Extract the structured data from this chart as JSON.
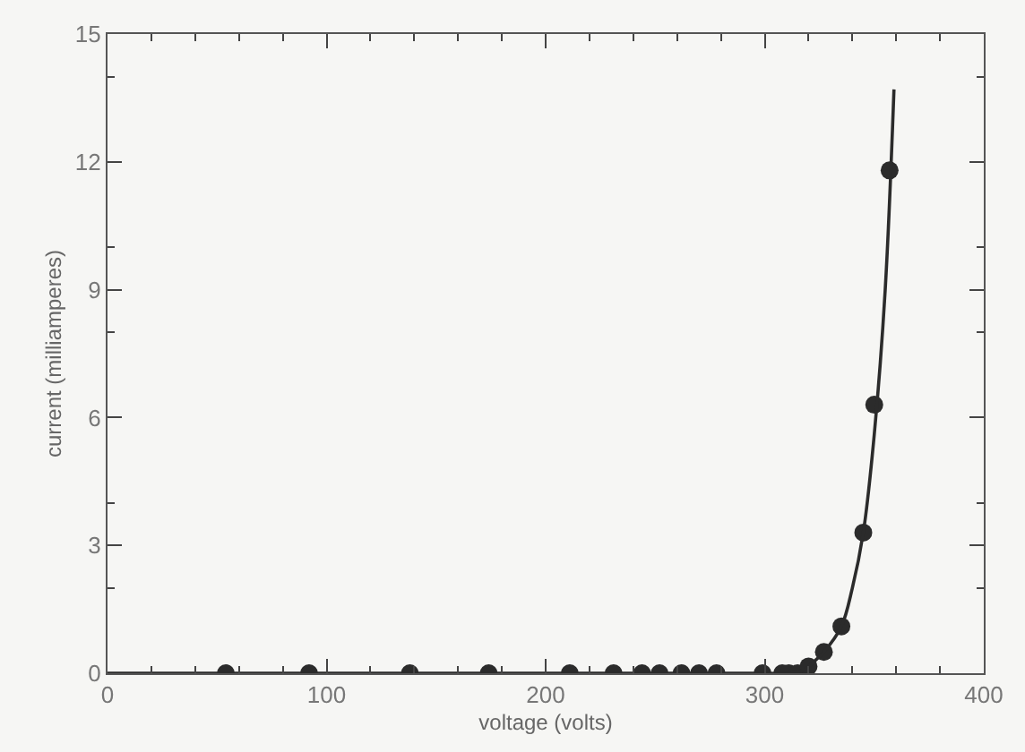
{
  "chart_data": {
    "type": "scatter",
    "xlabel": "voltage (volts)",
    "ylabel": "current (milliamperes)",
    "xlim": [
      0,
      400
    ],
    "xticks": [
      0,
      100,
      200,
      300,
      400
    ],
    "ylim": [
      0,
      15
    ],
    "yticks": [
      0,
      3,
      6,
      9,
      12,
      15
    ],
    "grid": false,
    "marker": "circle",
    "series": [
      {
        "color": "#2b2b2b",
        "x": [
          54,
          92,
          138,
          174,
          211,
          231,
          244,
          252,
          262,
          270,
          278,
          299,
          308,
          311,
          315,
          320,
          327,
          335,
          345,
          350,
          357
        ],
        "values": [
          0,
          0,
          0,
          0,
          0,
          0,
          0,
          0,
          0,
          0,
          0,
          0,
          0,
          0,
          0,
          0.16,
          0.5,
          1.1,
          3.3,
          6.3,
          11.8
        ]
      },
      {
        "type": "line",
        "color": "#2b2b2b",
        "marker": "none",
        "x": [
          0,
          100,
          200,
          300,
          312,
          318,
          322,
          327,
          335,
          340,
          345,
          350,
          355,
          359
        ],
        "values": [
          0,
          0,
          0,
          0,
          0,
          0.08,
          0.25,
          0.5,
          1.1,
          2.0,
          3.3,
          5.6,
          9.0,
          13.7
        ]
      }
    ]
  }
}
